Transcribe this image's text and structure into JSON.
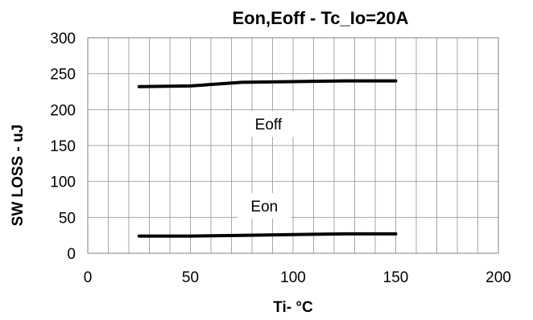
{
  "chart_data": {
    "type": "line",
    "title": "Eon,Eoff  - Tc_Io=20A",
    "xlabel": "Ti- °C",
    "ylabel": "SW LOSS - uJ",
    "xlim": [
      0,
      200
    ],
    "ylim": [
      0,
      300
    ],
    "x_ticks": [
      0,
      50,
      100,
      150,
      200
    ],
    "y_ticks": [
      0,
      50,
      100,
      150,
      200,
      250,
      300
    ],
    "x_tick_labels": [
      "0",
      "50",
      "100",
      "150",
      "200"
    ],
    "y_tick_labels": [
      "0",
      "50",
      "100",
      "150",
      "200",
      "250",
      "300"
    ],
    "grid": true,
    "series": [
      {
        "name": "Eoff",
        "color": "#000000",
        "points": [
          [
            25,
            232
          ],
          [
            50,
            233
          ],
          [
            75,
            238
          ],
          [
            100,
            239
          ],
          [
            125,
            240
          ],
          [
            150,
            240
          ]
        ]
      },
      {
        "name": "Eon",
        "color": "#000000",
        "points": [
          [
            25,
            24
          ],
          [
            50,
            24
          ],
          [
            75,
            25
          ],
          [
            100,
            26
          ],
          [
            125,
            27
          ],
          [
            150,
            27
          ]
        ]
      }
    ],
    "annotations": [
      {
        "text": "Eoff",
        "x": 88,
        "y": 180
      },
      {
        "text": "Eon",
        "x": 86,
        "y": 66
      }
    ]
  }
}
